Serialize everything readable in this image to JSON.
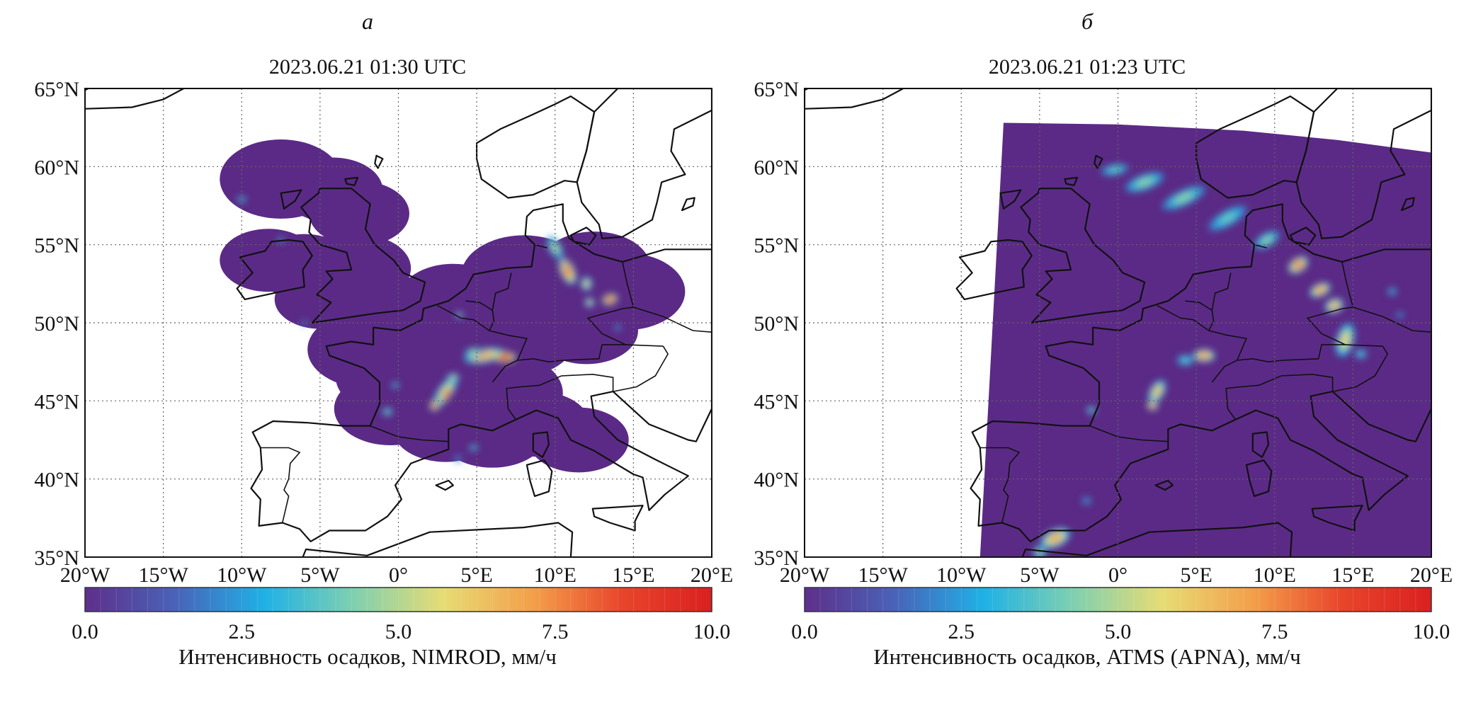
{
  "panels": [
    {
      "label": "а",
      "title": "2023.06.21 01:30 UTC",
      "colorbar_label": "Интенсивность осадков, NIMROD, мм/ч",
      "coverage": "nimrod-radar-composite"
    },
    {
      "label": "б",
      "title": "2023.06.21 01:23 UTC",
      "colorbar_label": "Интенсивность осадков, ATMS (APNA), мм/ч",
      "coverage": "atms-satellite-swath"
    }
  ],
  "axes": {
    "lat_ticks": [
      "65°N",
      "60°N",
      "55°N",
      "50°N",
      "45°N",
      "40°N",
      "35°N"
    ],
    "lon_ticks": [
      "20°W",
      "15°W",
      "10°W",
      "5°W",
      "0°",
      "5°E",
      "10°E",
      "15°E",
      "20°E"
    ],
    "lat_range": [
      35,
      65
    ],
    "lon_range": [
      -20,
      20
    ],
    "grid": "dotted"
  },
  "colorbar": {
    "ticks": [
      "0.0",
      "2.5",
      "5.0",
      "7.5",
      "10.0"
    ],
    "range": [
      0,
      10
    ],
    "colors": [
      "#5e2f8a",
      "#4a62b8",
      "#1fb1e6",
      "#7fd0b0",
      "#e6dc74",
      "#f3a04a",
      "#e8452b",
      "#d92020"
    ]
  },
  "colors": {
    "background_field": "#5b2a86",
    "coastline": "#111111"
  }
}
